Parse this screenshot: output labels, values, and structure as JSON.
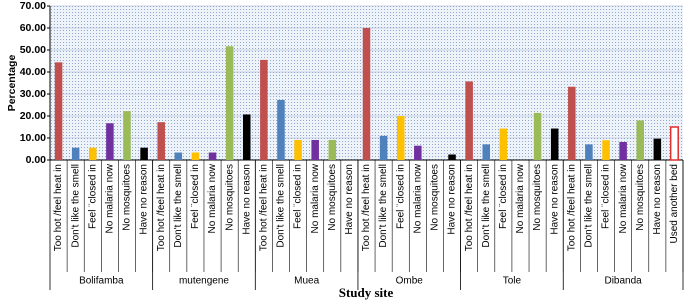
{
  "chart_data": {
    "type": "grouped-bar",
    "ylabel": "Percentage",
    "xlabel": "Study site",
    "ylim": [
      0,
      70
    ],
    "yticks": [
      {
        "value": 0,
        "label": "0.00"
      },
      {
        "value": 10,
        "label": "10.00"
      },
      {
        "value": 20,
        "label": "20.00"
      },
      {
        "value": 30,
        "label": "30.00"
      },
      {
        "value": 40,
        "label": "40.00"
      },
      {
        "value": 50,
        "label": "50.00"
      },
      {
        "value": 60,
        "label": "60.00"
      },
      {
        "value": 70,
        "label": "70.00"
      }
    ],
    "grid": true,
    "groups": [
      {
        "name": "Bolifamba",
        "categories": [
          "Too hot /feel heat in",
          "Don't like the smell",
          "Feel ¨closed in",
          "No malaria now",
          "No mosquitoes",
          "Have no reason"
        ],
        "colors": [
          "#c0504d",
          "#4f81bd",
          "#ffc000",
          "#7030a0",
          "#9bbb59",
          "#000000"
        ],
        "values": [
          44.4,
          5.6,
          5.6,
          16.7,
          22.2,
          5.6
        ]
      },
      {
        "name": "mutengene",
        "categories": [
          "Too hot /feel heat in",
          "Don't like the smell",
          "Feel ¨closed in",
          "No malaria now",
          "No mosquitoes",
          "Have no reason"
        ],
        "colors": [
          "#c0504d",
          "#4f81bd",
          "#ffc000",
          "#7030a0",
          "#9bbb59",
          "#000000"
        ],
        "values": [
          17.2,
          3.4,
          3.4,
          3.4,
          51.7,
          20.7
        ]
      },
      {
        "name": "Muea",
        "categories": [
          "Too hot /feel heat in",
          "Don't like the smell",
          "Feel ¨closed in",
          "No malaria now",
          "No mosquitoes",
          "Have no reason"
        ],
        "colors": [
          "#c0504d",
          "#4f81bd",
          "#ffc000",
          "#7030a0",
          "#9bbb59",
          "#000000"
        ],
        "values": [
          45.5,
          27.3,
          9.1,
          9.1,
          9.1,
          0
        ]
      },
      {
        "name": "Ombe",
        "categories": [
          "Too hot /feel heat in",
          "Don't like the smell",
          "Feel ¨closed in",
          "No malaria now",
          "No mosquitoes",
          "Have no reason"
        ],
        "colors": [
          "#c0504d",
          "#4f81bd",
          "#ffc000",
          "#7030a0",
          "#9bbb59",
          "#000000"
        ],
        "values": [
          60.0,
          11.0,
          20.0,
          6.5,
          0,
          2.5
        ]
      },
      {
        "name": "Tole",
        "categories": [
          "Too hot /feel heat in",
          "Don't like the smell",
          "Feel ¨closed in",
          "No malaria now",
          "No mosquitoes",
          "Have no reason"
        ],
        "colors": [
          "#c0504d",
          "#4f81bd",
          "#ffc000",
          "#7030a0",
          "#9bbb59",
          "#000000"
        ],
        "values": [
          35.7,
          7.1,
          14.3,
          0,
          21.4,
          14.3
        ]
      },
      {
        "name": "Dibanda",
        "categories": [
          "Too hot /feel heat in",
          "Don't like the smell",
          "Feel ¨closed in",
          "No malaria now",
          "No mosquitoes",
          "Have no reason",
          "Used another bed"
        ],
        "colors": [
          "#c0504d",
          "#4f81bd",
          "#ffc000",
          "#7030a0",
          "#9bbb59",
          "#000000",
          "#ffffff"
        ],
        "values": [
          33.3,
          7.1,
          9.0,
          8.2,
          18.0,
          9.7,
          15.0
        ]
      }
    ]
  }
}
